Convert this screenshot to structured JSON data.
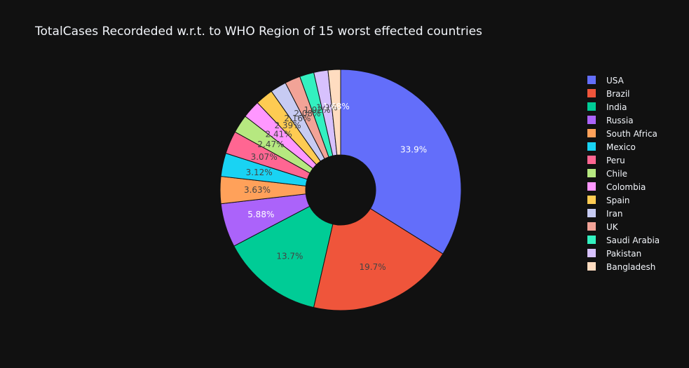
{
  "chart_data": {
    "type": "pie",
    "title": "TotalCases Recordeded w.r.t. to WHO Region of 15 worst effected countries",
    "hole": true,
    "legend_position": "right",
    "categories": [
      "USA",
      "Brazil",
      "India",
      "Russia",
      "South Africa",
      "Mexico",
      "Peru",
      "Chile",
      "Colombia",
      "Spain",
      "Iran",
      "UK",
      "Saudi Arabia",
      "Pakistan",
      "Bangladesh"
    ],
    "percent_labels": [
      "33.9%",
      "19.7%",
      "13.7%",
      "5.88%",
      "3.63%",
      "3.12%",
      "3.07%",
      "2.47%",
      "2.41%",
      "2.39%",
      "2.16%",
      "2.08%",
      "1.92%",
      "1.9%",
      "1.68%"
    ],
    "values": [
      33.9,
      19.7,
      13.7,
      5.88,
      3.63,
      3.12,
      3.07,
      2.47,
      2.41,
      2.39,
      2.16,
      2.08,
      1.92,
      1.9,
      1.68
    ],
    "colors": [
      "#636efa",
      "#EF553B",
      "#00cc96",
      "#ab63fa",
      "#FFA15A",
      "#19d3f3",
      "#FF6692",
      "#B6E880",
      "#FF97FF",
      "#FECB52",
      "#c7cbf3",
      "#f2a397",
      "#33f0c0",
      "#d7c1fd",
      "#ffdcc0"
    ],
    "label_colors": [
      "#ffffff",
      "#444444",
      "#444444",
      "#ffffff",
      "#444444",
      "#444444",
      "#444444",
      "#444444",
      "#444444",
      "#444444",
      "#444444",
      "#444444",
      "#444444",
      "#444444",
      "#ffffff"
    ]
  }
}
